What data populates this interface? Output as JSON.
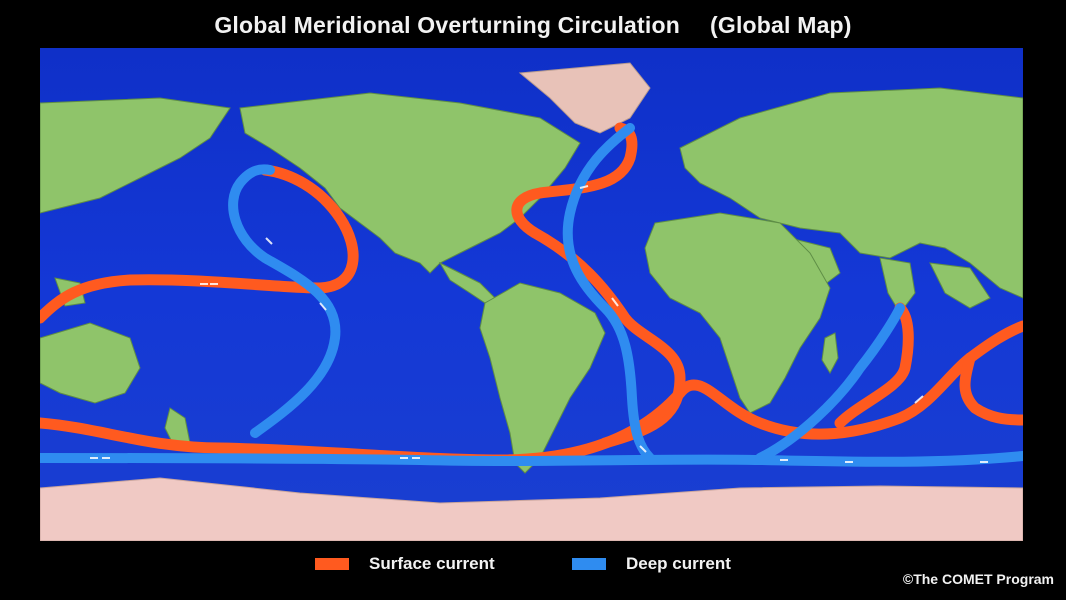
{
  "title": {
    "main": "Global Meridional Overturning Circulation",
    "sub": "(Global Map)"
  },
  "legend": {
    "surface": {
      "label": "Surface current",
      "color": "#ff5a1f"
    },
    "deep": {
      "label": "Deep current",
      "color": "#2f8cf0"
    }
  },
  "credit": "©The COMET Program",
  "colors": {
    "ocean": "#1236d8",
    "land": "#8fc46a",
    "ice": "#f0c9c4",
    "surface_current": "#ff5a1f",
    "deep_current": "#2f8cf0"
  }
}
